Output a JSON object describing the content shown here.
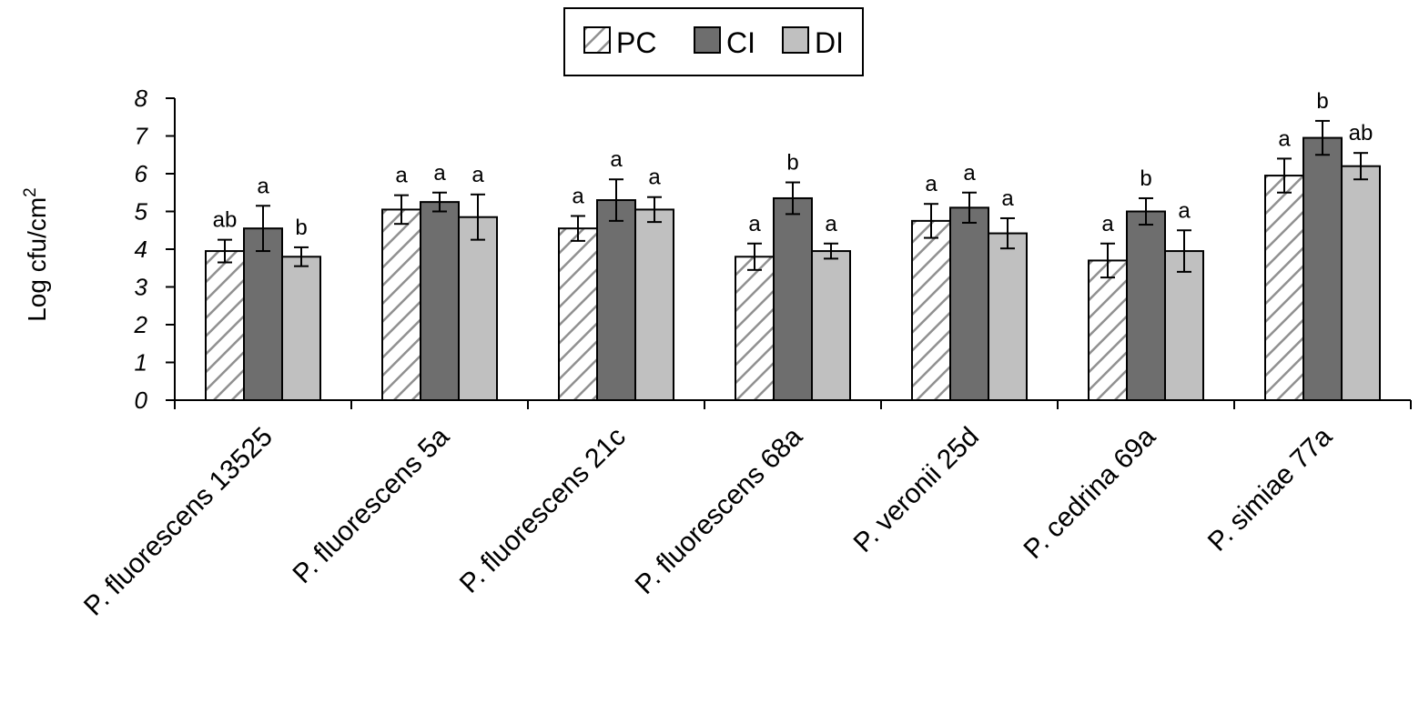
{
  "chart_data": {
    "type": "bar",
    "title": "",
    "xlabel": "",
    "ylabel": "Log cfu/cm",
    "ylabel_superscript": "2",
    "ylim": [
      0,
      8
    ],
    "yticks": [
      "0",
      "1",
      "2",
      "3",
      "4",
      "5",
      "6",
      "7",
      "8"
    ],
    "grid": false,
    "legend_position": "top-center",
    "categories": [
      "P. fluorescens 13525",
      "P. fluorescens 5a",
      "P. fluorescens 21c",
      "P. fluorescens 68a",
      "P. veronii 25d",
      "P. cedrina 69a",
      "P. simiae 77a"
    ],
    "series": [
      {
        "name": "PC",
        "pattern": "hatched",
        "color": "#ffffff",
        "values": [
          3.95,
          5.05,
          4.55,
          3.8,
          4.75,
          3.7,
          5.95
        ],
        "errors": [
          0.3,
          0.38,
          0.33,
          0.35,
          0.45,
          0.45,
          0.45
        ],
        "letters": [
          "ab",
          "a",
          "a",
          "a",
          "a",
          "a",
          "a"
        ]
      },
      {
        "name": "CI",
        "pattern": "solid",
        "color": "#6e6e6e",
        "values": [
          4.55,
          5.25,
          5.3,
          5.35,
          5.1,
          5.0,
          6.95
        ],
        "errors": [
          0.6,
          0.25,
          0.55,
          0.42,
          0.4,
          0.35,
          0.45
        ],
        "letters": [
          "a",
          "a",
          "a",
          "b",
          "a",
          "b",
          "b"
        ]
      },
      {
        "name": "DI",
        "pattern": "solid",
        "color": "#c0c0c0",
        "values": [
          3.8,
          4.85,
          5.05,
          3.95,
          4.42,
          3.95,
          6.2
        ],
        "errors": [
          0.25,
          0.6,
          0.33,
          0.2,
          0.4,
          0.55,
          0.35
        ],
        "letters": [
          "b",
          "a",
          "a",
          "a",
          "a",
          "a",
          "ab"
        ]
      }
    ]
  }
}
